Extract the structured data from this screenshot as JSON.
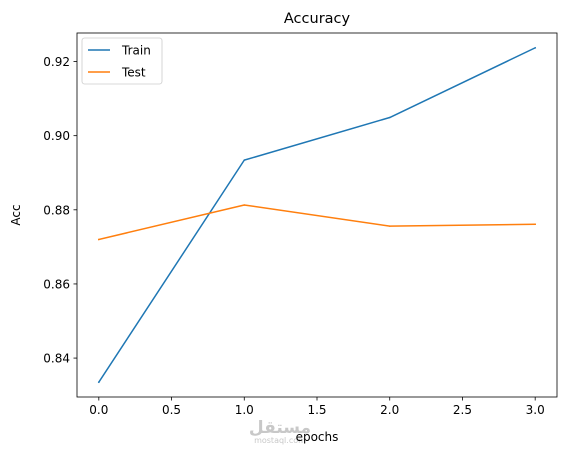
{
  "chart_data": {
    "type": "line",
    "title": "Accuracy",
    "xlabel": "epochs",
    "ylabel": "Acc",
    "x": [
      0,
      1,
      2,
      3
    ],
    "series": [
      {
        "name": "Train",
        "values": [
          0.8335,
          0.8934,
          0.9049,
          0.9237
        ],
        "color": "#1f77b4"
      },
      {
        "name": "Test",
        "values": [
          0.872,
          0.8813,
          0.8756,
          0.8761
        ],
        "color": "#ff7f0e"
      }
    ],
    "xlim": [
      -0.15,
      3.15
    ],
    "ylim": [
      0.8295,
      0.9277
    ],
    "xticks": [
      0.0,
      0.5,
      1.0,
      1.5,
      2.0,
      2.5,
      3.0
    ],
    "xtick_labels": [
      "0.0",
      "0.5",
      "1.0",
      "1.5",
      "2.0",
      "2.5",
      "3.0"
    ],
    "yticks": [
      0.84,
      0.86,
      0.88,
      0.9,
      0.92
    ],
    "ytick_labels": [
      "0.84",
      "0.86",
      "0.88",
      "0.90",
      "0.92"
    ],
    "grid": false,
    "legend_position": "top-left"
  },
  "watermark": {
    "arabic": "مستقل",
    "latin": "mostaql.com"
  }
}
